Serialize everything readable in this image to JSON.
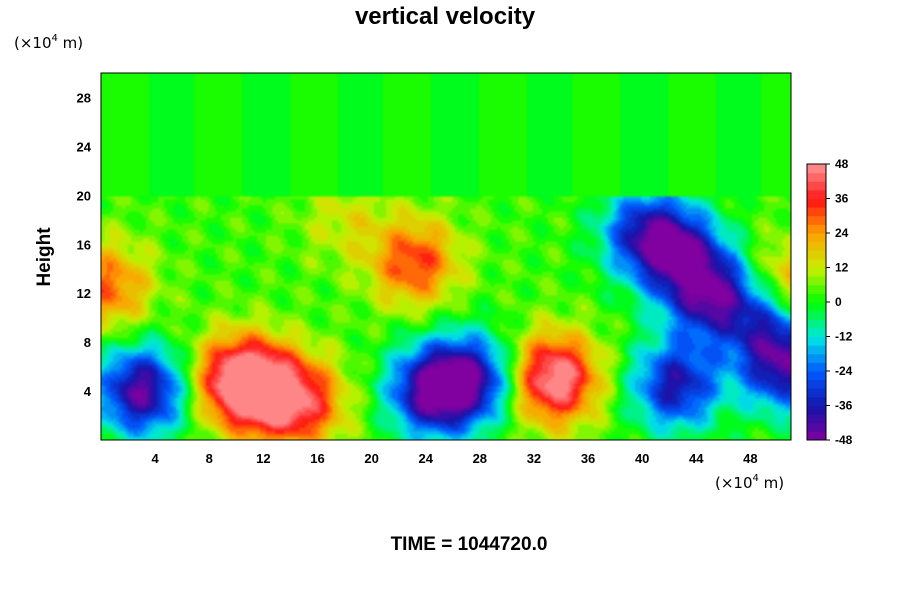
{
  "chart_data": {
    "type": "heatmap",
    "title": "vertical velocity",
    "ylabel": "Height",
    "x_unit": {
      "base": "(×10",
      "exp": "4",
      "rest": " m)"
    },
    "y_unit": {
      "base": "(×10",
      "exp": "4",
      "rest": " m)"
    },
    "x_ticks": [
      4,
      8,
      12,
      16,
      20,
      24,
      28,
      32,
      36,
      40,
      44,
      48
    ],
    "y_ticks": [
      4,
      8,
      12,
      16,
      20,
      24,
      28
    ],
    "xlim": [
      0,
      51
    ],
    "ylim": [
      0,
      30
    ],
    "colorbar": {
      "min": -48,
      "max": 48,
      "levels": 32,
      "tick_values": [
        48,
        36,
        24,
        12,
        0,
        -12,
        -24,
        -36,
        -48
      ]
    },
    "features": [
      {
        "x": 3,
        "y": 4,
        "value": -48
      },
      {
        "x": 10,
        "y": 5,
        "value": 38
      },
      {
        "x": 12,
        "y": 4,
        "value": 34
      },
      {
        "x": 15,
        "y": 3,
        "value": 30
      },
      {
        "x": 24.5,
        "y": 4,
        "value": -48
      },
      {
        "x": 27.5,
        "y": 5,
        "value": -38
      },
      {
        "x": 33.5,
        "y": 5,
        "value": 48
      },
      {
        "x": 42.5,
        "y": 4.5,
        "value": -40
      },
      {
        "x": 42.5,
        "y": 15.5,
        "value": -38
      },
      {
        "x": 45,
        "y": 12,
        "value": -44
      },
      {
        "x": 49,
        "y": 10,
        "value": -30
      },
      {
        "x": 50.5,
        "y": 6,
        "value": -42
      },
      {
        "x": 23.2,
        "y": 14.5,
        "value": 30
      },
      {
        "x": 0.5,
        "y": 12.5,
        "value": 26
      },
      {
        "x": 50.5,
        "y": 12.5,
        "value": 26
      },
      {
        "x": 18,
        "y": 18,
        "value": 10
      },
      {
        "x": 40,
        "y": 17,
        "value": -30
      }
    ],
    "footer": "TIME = 1044720.0"
  }
}
